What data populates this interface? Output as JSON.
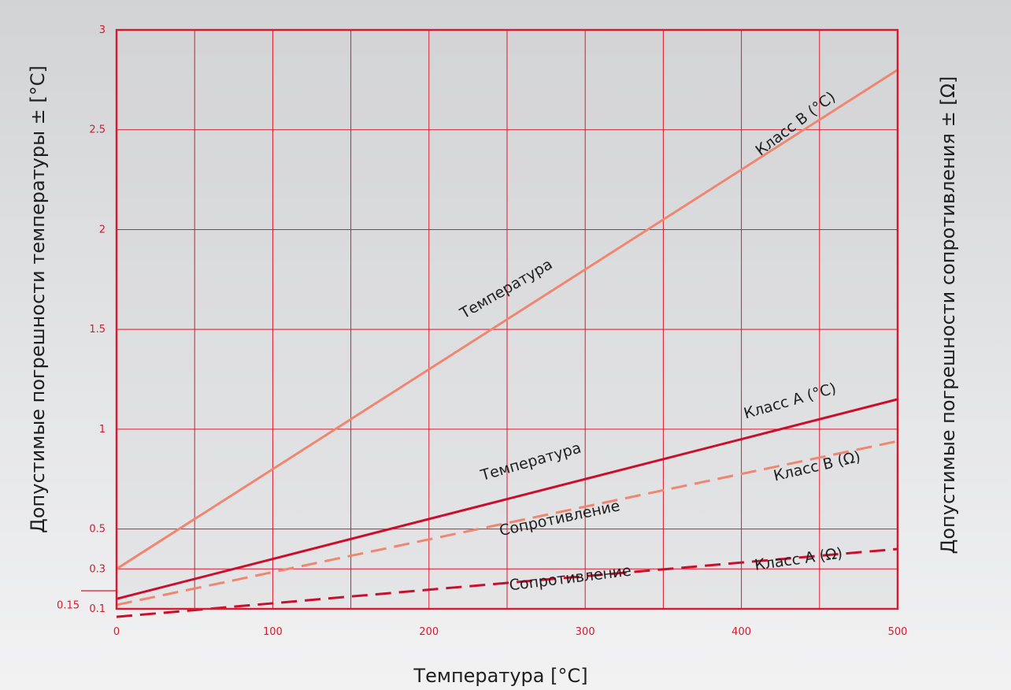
{
  "chart_data": {
    "type": "line",
    "xlabel": "Температура [°C]",
    "ylabel_left": "Допустимые погрешности температуры ± [°C]",
    "ylabel_right": "Допустимые погрешности сопротивления  ± [Ω]",
    "xlim": [
      0,
      500
    ],
    "ylim": [
      0.1,
      3
    ],
    "x_ticks": [
      "0",
      "100",
      "200",
      "300",
      "400",
      "500"
    ],
    "y_ticks": [
      {
        "value": 0.1,
        "label": "0.1"
      },
      {
        "value": 0.3,
        "label": "0.3"
      },
      {
        "value": 0.5,
        "label": "0.5"
      },
      {
        "value": 1,
        "label": "1"
      },
      {
        "value": 1.5,
        "label": "1.5"
      },
      {
        "value": 2,
        "label": "2"
      },
      {
        "value": 2.5,
        "label": "2.5"
      },
      {
        "value": 3,
        "label": "3"
      }
    ],
    "y_extra_marker": {
      "value": 0.15,
      "label": "0.15"
    },
    "x_grid_values": [
      0,
      50,
      100,
      150,
      200,
      250,
      300,
      350,
      400,
      450,
      500
    ],
    "y_grid_values": [
      0.3,
      0.5,
      1,
      1.5,
      2,
      2.5
    ],
    "grid": true,
    "colors": {
      "frame": "#d8192e",
      "grid": "#d8192e",
      "class_b": "#ef8670",
      "class_a": "#c8102e",
      "text": "#1f1f1f"
    },
    "series": [
      {
        "name": "Класс B (°C)",
        "quantity_label": "Температура",
        "style": "solid",
        "color": "#ef8670",
        "x": [
          0,
          500
        ],
        "y": [
          0.3,
          2.8
        ]
      },
      {
        "name": "Класс A (°C)",
        "quantity_label": "Температура",
        "style": "solid",
        "color": "#c8102e",
        "x": [
          0,
          500
        ],
        "y": [
          0.15,
          1.15
        ]
      },
      {
        "name": "Класс B (Ω)",
        "quantity_label": "Сопротивление",
        "style": "dashed",
        "color": "#ef8670",
        "x": [
          0,
          500
        ],
        "y": [
          0.12,
          0.94
        ]
      },
      {
        "name": "Класс A (Ω)",
        "quantity_label": "Сопротивление",
        "style": "dashed",
        "color": "#c8102e",
        "x": [
          0,
          500
        ],
        "y": [
          0.06,
          0.4
        ]
      }
    ]
  }
}
